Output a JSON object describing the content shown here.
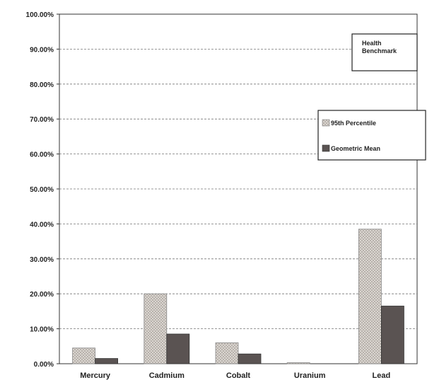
{
  "chart_data": {
    "type": "bar",
    "categories": [
      "Mercury",
      "Cadmium",
      "Cobalt",
      "Uranium",
      "Lead"
    ],
    "series": [
      {
        "name": "95th Percentile",
        "values": [
          4.5,
          20.0,
          6.0,
          0.3,
          38.5
        ],
        "color": "#d9d4cf",
        "pattern": "crosshatch"
      },
      {
        "name": "Geometric Mean",
        "values": [
          1.5,
          8.5,
          2.8,
          0.0,
          16.5
        ],
        "color": "#5a5352",
        "pattern": "solid"
      }
    ],
    "ylim": [
      0,
      100
    ],
    "yticks": [
      0,
      10,
      20,
      30,
      40,
      50,
      60,
      70,
      80,
      90,
      100
    ],
    "ytick_labels": [
      "0.00%",
      "10.00%",
      "20.00%",
      "30.00%",
      "40.00%",
      "50.00%",
      "60.00%",
      "70.00%",
      "80.00%",
      "90.00%",
      "100.00%"
    ],
    "grid": true,
    "legend_position": "right",
    "annotation": "Health Benchmark"
  }
}
